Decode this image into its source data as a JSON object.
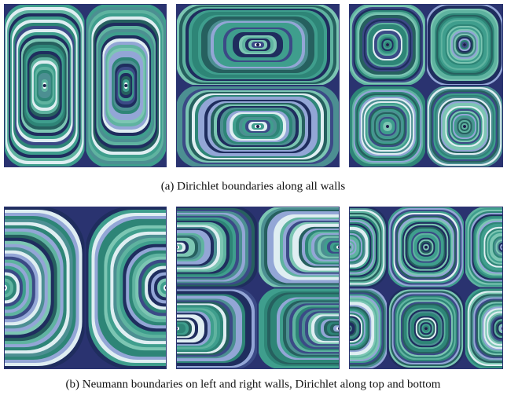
{
  "figure": {
    "panels": [
      {
        "caption": "(a)  Dirichlet boundaries along all walls"
      },
      {
        "caption": "(b)  Neumann boundaries on left and right walls, Dirichlet along top and bottom"
      }
    ]
  }
}
